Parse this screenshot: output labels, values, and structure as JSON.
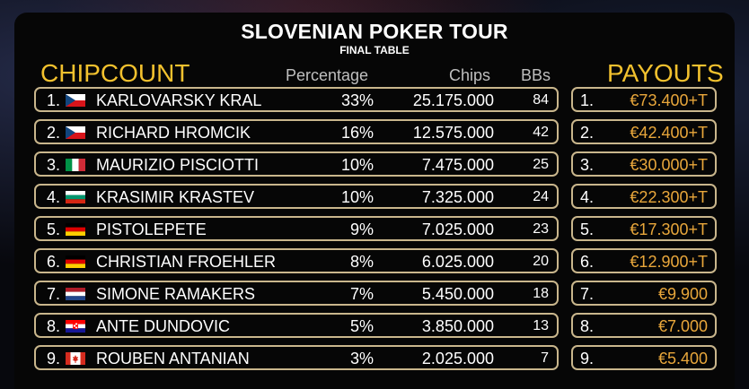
{
  "header": {
    "title": "SLOVENIAN POKER TOUR",
    "subtitle": "FINAL TABLE"
  },
  "chipcount": {
    "title": "CHIPCOUNT",
    "columns": {
      "percentage": "Percentage",
      "chips": "Chips",
      "bbs": "BBs"
    },
    "rows": [
      {
        "rank": "1.",
        "country": "czech",
        "name": "KARLOVARSKY KRAL",
        "pct": "33%",
        "chips": "25.175.000",
        "bbs": "84"
      },
      {
        "rank": "2.",
        "country": "czech",
        "name": "RICHARD HROMCIK",
        "pct": "16%",
        "chips": "12.575.000",
        "bbs": "42"
      },
      {
        "rank": "3.",
        "country": "italy",
        "name": "MAURIZIO PISCIOTTI",
        "pct": "10%",
        "chips": "7.475.000",
        "bbs": "25"
      },
      {
        "rank": "4.",
        "country": "bulgaria",
        "name": "KRASIMIR KRASTEV",
        "pct": "10%",
        "chips": "7.325.000",
        "bbs": "24"
      },
      {
        "rank": "5.",
        "country": "germany",
        "name": "PISTOLEPETE",
        "pct": "9%",
        "chips": "7.025.000",
        "bbs": "23"
      },
      {
        "rank": "6.",
        "country": "germany",
        "name": "CHRISTIAN FROEHLER",
        "pct": "8%",
        "chips": "6.025.000",
        "bbs": "20"
      },
      {
        "rank": "7.",
        "country": "netherlands",
        "name": "SIMONE RAMAKERS",
        "pct": "7%",
        "chips": "5.450.000",
        "bbs": "18"
      },
      {
        "rank": "8.",
        "country": "croatia",
        "name": "ANTE DUNDOVIC",
        "pct": "5%",
        "chips": "3.850.000",
        "bbs": "13"
      },
      {
        "rank": "9.",
        "country": "canada",
        "name": "ROUBEN ANTANIAN",
        "pct": "3%",
        "chips": "2.025.000",
        "bbs": "7"
      }
    ]
  },
  "payouts": {
    "title": "PAYOUTS",
    "rows": [
      {
        "rank": "1.",
        "amount": "€73.400+T"
      },
      {
        "rank": "2.",
        "amount": "€42.400+T"
      },
      {
        "rank": "3.",
        "amount": "€30.000+T"
      },
      {
        "rank": "4.",
        "amount": "€22.300+T"
      },
      {
        "rank": "5.",
        "amount": "€17.300+T"
      },
      {
        "rank": "6.",
        "amount": "€12.900+T"
      },
      {
        "rank": "7.",
        "amount": "€9.900"
      },
      {
        "rank": "8.",
        "amount": "€7.000"
      },
      {
        "rank": "9.",
        "amount": "€5.400"
      }
    ]
  },
  "colors": {
    "gold": "#f2c12e",
    "payout_amount": "#e9a73b",
    "border": "#c9b68c"
  }
}
